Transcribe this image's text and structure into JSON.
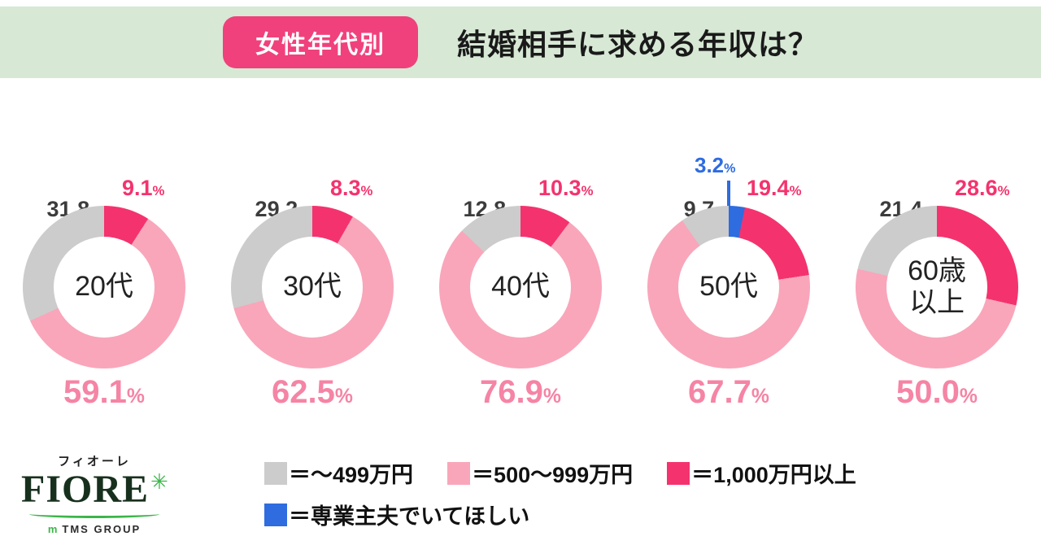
{
  "header": {
    "badge": "女性年代別",
    "title": "結婚相手に求める年収は？"
  },
  "colors": {
    "gray": "#cccccc",
    "pink": "#f9a6ba",
    "crimson": "#f4336e",
    "blue": "#2e6ce0"
  },
  "charts": [
    {
      "center": "20代",
      "labels": {
        "gray": {
          "value": "31.8",
          "unit": "%"
        },
        "crimson": {
          "value": "9.1",
          "unit": "%"
        },
        "pink": {
          "value": "59.1",
          "unit": "%"
        }
      },
      "segments": [
        {
          "color": "crimson",
          "value": 9.1
        },
        {
          "color": "pink",
          "value": 59.1
        },
        {
          "color": "gray",
          "value": 31.8
        }
      ]
    },
    {
      "center": "30代",
      "labels": {
        "gray": {
          "value": "29.2",
          "unit": "%"
        },
        "crimson": {
          "value": "8.3",
          "unit": "%"
        },
        "pink": {
          "value": "62.5",
          "unit": "%"
        }
      },
      "segments": [
        {
          "color": "crimson",
          "value": 8.3
        },
        {
          "color": "pink",
          "value": 62.5
        },
        {
          "color": "gray",
          "value": 29.2
        }
      ]
    },
    {
      "center": "40代",
      "labels": {
        "gray": {
          "value": "12.8",
          "unit": "%"
        },
        "crimson": {
          "value": "10.3",
          "unit": "%"
        },
        "pink": {
          "value": "76.9",
          "unit": "%"
        }
      },
      "segments": [
        {
          "color": "crimson",
          "value": 10.3
        },
        {
          "color": "pink",
          "value": 76.9
        },
        {
          "color": "gray",
          "value": 12.8
        }
      ]
    },
    {
      "center": "50代",
      "labels": {
        "gray": {
          "value": "9.7",
          "unit": "%"
        },
        "crimson": {
          "value": "19.4",
          "unit": "%"
        },
        "pink": {
          "value": "67.7",
          "unit": "%"
        },
        "blue": {
          "value": "3.2",
          "unit": "%"
        }
      },
      "segments": [
        {
          "color": "blue",
          "value": 3.2
        },
        {
          "color": "crimson",
          "value": 19.4
        },
        {
          "color": "pink",
          "value": 67.7
        },
        {
          "color": "gray",
          "value": 9.7
        }
      ]
    },
    {
      "center": "60歳\n以上",
      "labels": {
        "gray": {
          "value": "21.4",
          "unit": "%"
        },
        "crimson": {
          "value": "28.6",
          "unit": "%"
        },
        "pink": {
          "value": "50.0",
          "unit": "%"
        }
      },
      "segments": [
        {
          "color": "crimson",
          "value": 28.6
        },
        {
          "color": "pink",
          "value": 50.0
        },
        {
          "color": "gray",
          "value": 21.4
        }
      ]
    }
  ],
  "legend": {
    "rows": [
      [
        {
          "color": "gray",
          "label": "＝～499万円"
        },
        {
          "color": "pink",
          "label": "＝500～999万円"
        },
        {
          "color": "crimson",
          "label": "＝1,000万円以上"
        }
      ],
      [
        {
          "color": "blue",
          "label": "＝専業主夫でいてほしい"
        }
      ]
    ]
  },
  "logo": {
    "kana": "フィオーレ",
    "name": "FIORE",
    "flower": "✳",
    "group_mark": "m",
    "group": "TMS GROUP"
  },
  "chart_data": {
    "type": "pie",
    "title": "女性年代別 結婚相手に求める年収は？",
    "legend_position": "bottom",
    "categories": [
      "～499万円",
      "500～999万円",
      "1,000万円以上",
      "専業主夫でいてほしい"
    ],
    "charts": [
      {
        "group": "20代",
        "values": {
          "～499万円": 31.8,
          "500～999万円": 59.1,
          "1,000万円以上": 9.1
        }
      },
      {
        "group": "30代",
        "values": {
          "～499万円": 29.2,
          "500～999万円": 62.5,
          "1,000万円以上": 8.3
        }
      },
      {
        "group": "40代",
        "values": {
          "～499万円": 12.8,
          "500～999万円": 76.9,
          "1,000万円以上": 10.3
        }
      },
      {
        "group": "50代",
        "values": {
          "～499万円": 9.7,
          "500～999万円": 67.7,
          "1,000万円以上": 19.4,
          "専業主夫でいてほしい": 3.2
        }
      },
      {
        "group": "60歳以上",
        "values": {
          "～499万円": 21.4,
          "500～999万円": 50.0,
          "1,000万円以上": 28.6
        }
      }
    ]
  }
}
